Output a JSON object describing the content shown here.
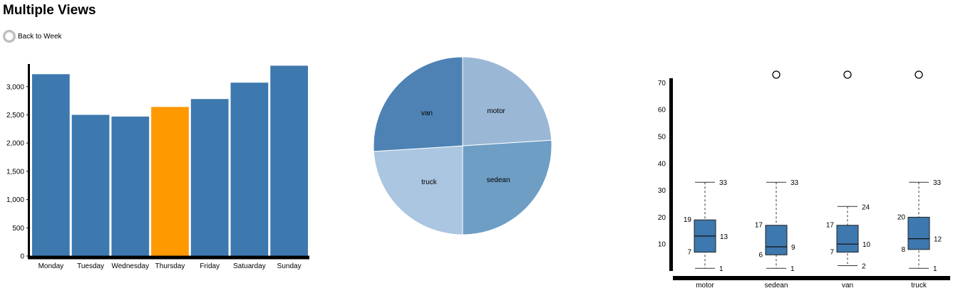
{
  "page": {
    "title": "Multiple Views"
  },
  "controls": {
    "back_label": "Back to Week"
  },
  "chart_data": [
    {
      "type": "bar",
      "categories": [
        "Monday",
        "Tuesday",
        "Wednesday",
        "Thursday",
        "Friday",
        "Satuarday",
        "Sunday"
      ],
      "values": [
        3220,
        2500,
        2470,
        2640,
        2780,
        3070,
        3370
      ],
      "highlighted": "Thursday",
      "ylim": [
        0,
        3400
      ],
      "yticks": [
        0,
        500,
        1000,
        1500,
        2000,
        2500,
        3000
      ],
      "ytick_labels": [
        "0",
        "500",
        "1,000",
        "1,500",
        "2,000",
        "2,500",
        "3,000"
      ],
      "colors": {
        "bar": "#3d78ae",
        "highlight": "#ff9900"
      }
    },
    {
      "type": "pie",
      "labels": [
        "motor",
        "sedean",
        "truck",
        "van"
      ],
      "values": [
        24,
        26,
        24,
        26
      ],
      "colors": [
        "#9ab8d6",
        "#6e9ec4",
        "#aac6e0",
        "#4e82b4"
      ]
    },
    {
      "type": "boxplot",
      "categories": [
        "motor",
        "sedean",
        "van",
        "truck"
      ],
      "ylim": [
        0,
        73
      ],
      "yticks": [
        10,
        20,
        30,
        40,
        50,
        60,
        70
      ],
      "boxes": [
        {
          "name": "motor",
          "min": 1,
          "q1": 7,
          "median": 13,
          "q3": 19,
          "max": 33,
          "outliers": []
        },
        {
          "name": "sedean",
          "min": 1,
          "q1": 6,
          "median": 9,
          "q3": 17,
          "max": 33,
          "outliers": [
            73
          ]
        },
        {
          "name": "van",
          "min": 2,
          "q1": 7,
          "median": 10,
          "q3": 17,
          "max": 24,
          "outliers": [
            73
          ]
        },
        {
          "name": "truck",
          "min": 1,
          "q1": 8,
          "median": 12,
          "q3": 20,
          "max": 33,
          "outliers": [
            73
          ]
        }
      ],
      "colors": {
        "box": "#3d78ae"
      }
    }
  ]
}
